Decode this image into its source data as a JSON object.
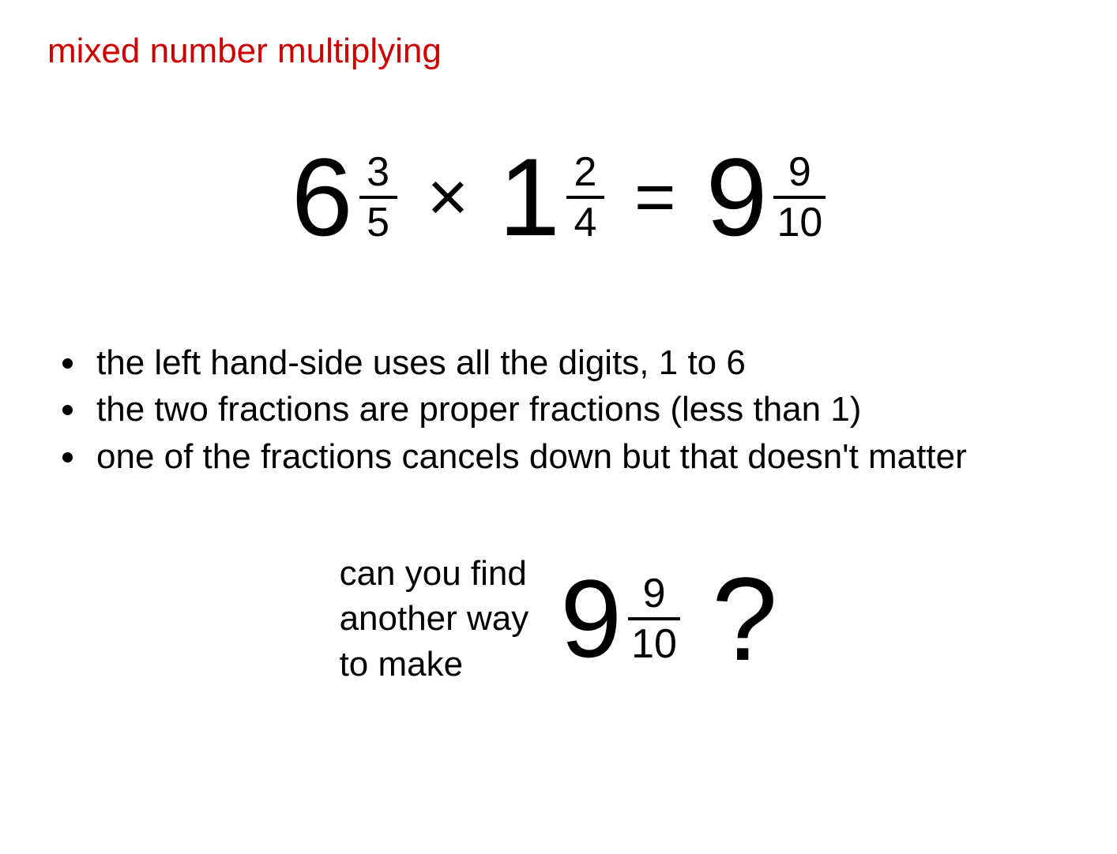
{
  "title": "mixed number multiplying",
  "title_color": "#cc0000",
  "text_color": "#000000",
  "background_color": "#ffffff",
  "equation": {
    "left1": {
      "whole": "6",
      "num": "3",
      "den": "5"
    },
    "op1": "×",
    "left2": {
      "whole": "1",
      "num": "2",
      "den": "4"
    },
    "eq": "=",
    "right": {
      "whole": "9",
      "num": "9",
      "den": "10"
    },
    "whole_fontsize": 140,
    "frac_fontsize": 52,
    "op_fontsize": 90
  },
  "bullets": [
    "the left hand-side uses all the digits, 1 to 6",
    "the two fractions are proper fractions (less than 1)",
    "one of the fractions cancels down but that doesn't matter"
  ],
  "bullet_fontsize": 44,
  "question": {
    "text": "can you find\nanother way\nto make",
    "mixed": {
      "whole": "9",
      "num": "9",
      "den": "10"
    },
    "mark": "?",
    "text_fontsize": 44,
    "mark_fontsize": 150
  }
}
